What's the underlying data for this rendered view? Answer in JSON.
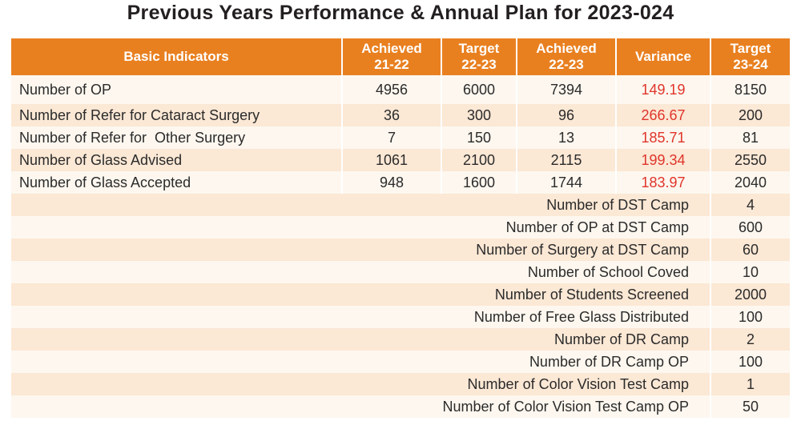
{
  "title": "Previous Years Performance & Annual Plan for 2023-024",
  "headers": [
    {
      "line1": "Basic Indicators",
      "line2": ""
    },
    {
      "line1": "Achieved",
      "line2": "21-22"
    },
    {
      "line1": "Target",
      "line2": "22-23"
    },
    {
      "line1": "Achieved",
      "line2": "22-23"
    },
    {
      "line1": "Variance",
      "line2": ""
    },
    {
      "line1": "Target",
      "line2": "23-24"
    }
  ],
  "rows": [
    {
      "label": "Number of OP",
      "achieved_21_22": "4956",
      "target_22_23": "6000",
      "achieved_22_23": "7394",
      "variance": "149.19",
      "target_23_24": "8150"
    },
    {
      "label": "Number of Refer for Cataract Surgery",
      "achieved_21_22": "36",
      "target_22_23": "300",
      "achieved_22_23": "96",
      "variance": "266.67",
      "target_23_24": "200"
    },
    {
      "label": "Number of Refer for  Other Surgery",
      "achieved_21_22": "7",
      "target_22_23": "150",
      "achieved_22_23": "13",
      "variance": "185.71",
      "target_23_24": "81"
    },
    {
      "label": "Number of Glass Advised",
      "achieved_21_22": "1061",
      "target_22_23": "2100",
      "achieved_22_23": "2115",
      "variance": "199.34",
      "target_23_24": "2550"
    },
    {
      "label": "Number of Glass Accepted",
      "achieved_21_22": "948",
      "target_22_23": "1600",
      "achieved_22_23": "1744",
      "variance": "183.97",
      "target_23_24": "2040"
    }
  ],
  "plan_rows": [
    {
      "label": "Number of DST Camp",
      "target_23_24": "4"
    },
    {
      "label": "Number of OP at DST Camp",
      "target_23_24": "600"
    },
    {
      "label": "Number of Surgery at DST Camp",
      "target_23_24": "60"
    },
    {
      "label": "Number of School Coved",
      "target_23_24": "10"
    },
    {
      "label": "Number of Students Screened",
      "target_23_24": "2000"
    },
    {
      "label": "Number of Free Glass Distributed",
      "target_23_24": "100"
    },
    {
      "label": "Number of DR Camp",
      "target_23_24": "2"
    },
    {
      "label": "Number of DR Camp OP",
      "target_23_24": "100"
    },
    {
      "label": "Number of Color Vision Test Camp",
      "target_23_24": "1"
    },
    {
      "label": "Number of Color Vision Test Camp OP",
      "target_23_24": "50"
    }
  ],
  "colors": {
    "header": "#e98020",
    "variance": "#e0352b",
    "row_light": "#fdf7ef",
    "row_dark": "#fbe8d5"
  }
}
